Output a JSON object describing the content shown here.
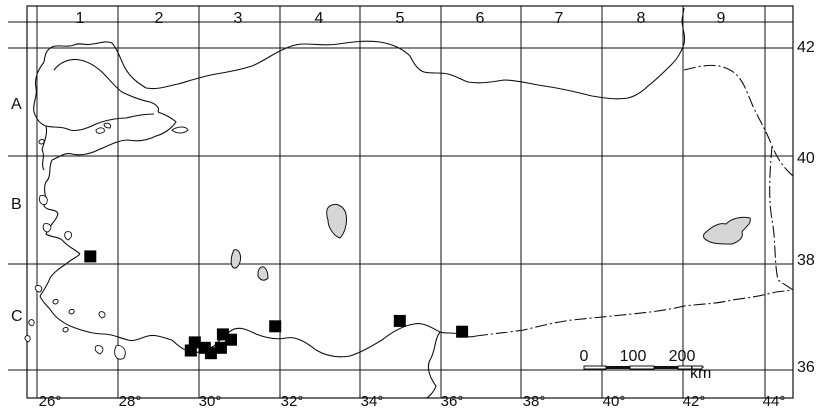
{
  "grid": {
    "columns": [
      "1",
      "2",
      "3",
      "4",
      "5",
      "6",
      "7",
      "8",
      "9"
    ],
    "rows": [
      "A",
      "B",
      "C"
    ]
  },
  "axes": {
    "longitude": [
      "26°",
      "28°",
      "30°",
      "32°",
      "34°",
      "36°",
      "38°",
      "40°",
      "42°",
      "44°"
    ],
    "latitude": [
      "42",
      "40",
      "38",
      "36"
    ]
  },
  "scale_bar": {
    "ticks": [
      "0",
      "100",
      "200"
    ],
    "unit": "km"
  },
  "localities": [
    {
      "lon": 27.0,
      "lat": 38.15
    },
    {
      "lon": 29.6,
      "lat": 36.55
    },
    {
      "lon": 29.5,
      "lat": 36.4
    },
    {
      "lon": 29.85,
      "lat": 36.45
    },
    {
      "lon": 30.0,
      "lat": 36.35
    },
    {
      "lon": 30.25,
      "lat": 36.45
    },
    {
      "lon": 30.3,
      "lat": 36.7
    },
    {
      "lon": 30.5,
      "lat": 36.6
    },
    {
      "lon": 31.6,
      "lat": 36.85
    },
    {
      "lon": 34.7,
      "lat": 36.95
    },
    {
      "lon": 36.25,
      "lat": 36.75
    }
  ],
  "colors": {
    "lines": "#111111",
    "lakes": "#d6d6d6",
    "markers": "#000000"
  }
}
